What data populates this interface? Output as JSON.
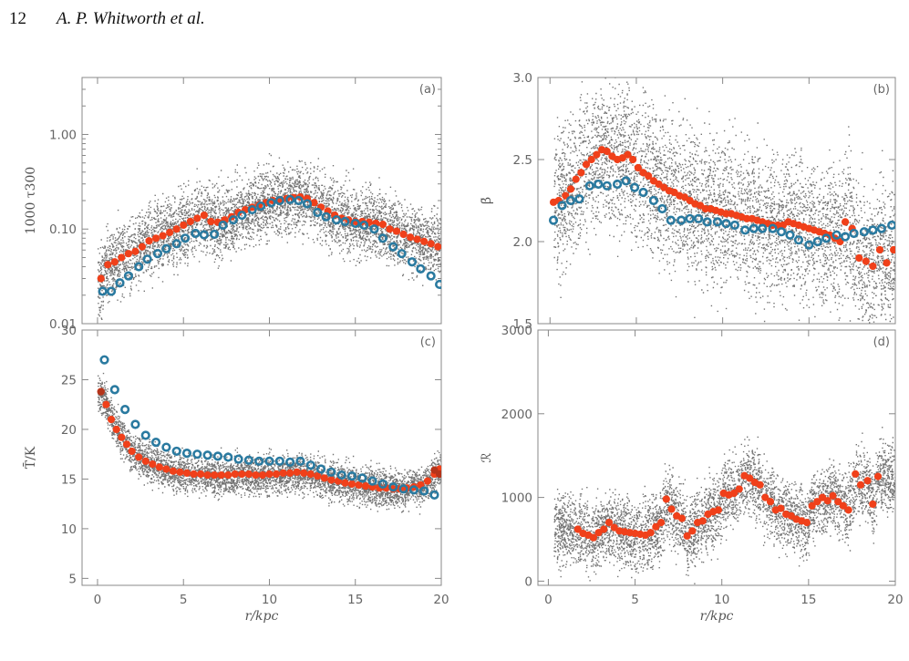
{
  "header": {
    "page_number": "12",
    "authors": "A. P. Whitworth et al."
  },
  "colors": {
    "red_series": "#f0401a",
    "darkred_series": "#b5341a",
    "blue_series": "#2a7aa0",
    "scatter": "#000000",
    "axes": "#888888"
  },
  "chart_data": [
    {
      "panel": "(a)",
      "type": "scatter",
      "xlabel": "",
      "ylabel": "1000 τ300",
      "xlim": [
        -0.9,
        20
      ],
      "ylim": [
        0.01,
        4.0
      ],
      "yscale": "log",
      "xticks": [
        0,
        5,
        10,
        15,
        20
      ],
      "xticklabels": [
        "",
        "",
        "",
        "",
        ""
      ],
      "yticks": [
        0.01,
        0.1,
        1.0
      ],
      "yticklabels": [
        "0.01",
        "0.10",
        "1.00"
      ],
      "series": [
        {
          "marker": "filled",
          "color": "red",
          "x": [
            0.2,
            0.6,
            1.0,
            1.4,
            1.8,
            2.2,
            2.6,
            3.0,
            3.4,
            3.8,
            4.2,
            4.6,
            5.0,
            5.4,
            5.8,
            6.2,
            6.6,
            7.0,
            7.4,
            7.8,
            8.2,
            8.6,
            9.0,
            9.4,
            9.8,
            10.2,
            10.6,
            11.0,
            11.4,
            11.8,
            12.2,
            12.6,
            13.0,
            13.4,
            13.8,
            14.2,
            14.6,
            15.0,
            15.4,
            15.8,
            16.2,
            16.6,
            17.0,
            17.4,
            17.8,
            18.2,
            18.6,
            19.0,
            19.4,
            19.8
          ],
          "y": [
            0.03,
            0.042,
            0.045,
            0.05,
            0.055,
            0.058,
            0.065,
            0.075,
            0.08,
            0.085,
            0.092,
            0.1,
            0.11,
            0.12,
            0.13,
            0.14,
            0.12,
            0.118,
            0.125,
            0.135,
            0.15,
            0.16,
            0.17,
            0.18,
            0.19,
            0.2,
            0.205,
            0.21,
            0.215,
            0.218,
            0.21,
            0.19,
            0.17,
            0.155,
            0.14,
            0.13,
            0.125,
            0.12,
            0.12,
            0.118,
            0.115,
            0.112,
            0.1,
            0.095,
            0.088,
            0.082,
            0.078,
            0.074,
            0.07,
            0.065
          ]
        },
        {
          "marker": "open",
          "color": "blue",
          "x": [
            0.3,
            0.8,
            1.3,
            1.8,
            2.4,
            2.9,
            3.5,
            4.0,
            4.6,
            5.1,
            5.7,
            6.2,
            6.8,
            7.3,
            7.9,
            8.4,
            9.0,
            9.5,
            10.1,
            10.6,
            11.2,
            11.7,
            12.2,
            12.8,
            13.3,
            13.9,
            14.4,
            15.0,
            15.5,
            16.1,
            16.6,
            17.2,
            17.7,
            18.3,
            18.8,
            19.4,
            19.9
          ],
          "y": [
            0.022,
            0.022,
            0.027,
            0.032,
            0.04,
            0.048,
            0.055,
            0.062,
            0.07,
            0.08,
            0.09,
            0.087,
            0.088,
            0.11,
            0.125,
            0.14,
            0.16,
            0.175,
            0.19,
            0.2,
            0.205,
            0.2,
            0.185,
            0.15,
            0.135,
            0.125,
            0.12,
            0.115,
            0.11,
            0.1,
            0.08,
            0.065,
            0.055,
            0.045,
            0.038,
            0.032,
            0.026
          ]
        }
      ]
    },
    {
      "panel": "(b)",
      "type": "scatter",
      "xlabel": "",
      "ylabel": "β̄",
      "xlim": [
        -0.7,
        20
      ],
      "ylim": [
        1.5,
        3.0
      ],
      "xticks": [
        0,
        5,
        10,
        15,
        20
      ],
      "xticklabels": [
        "",
        "",
        "",
        "",
        ""
      ],
      "yticks": [
        1.5,
        2.0,
        2.5,
        3.0
      ],
      "yticklabels": [
        "1.5",
        "2.0",
        "2.5",
        "3.0"
      ],
      "series": [
        {
          "marker": "filled",
          "color": "red",
          "x": [
            0.2,
            0.5,
            0.9,
            1.2,
            1.5,
            1.8,
            2.1,
            2.4,
            2.7,
            3.0,
            3.3,
            3.6,
            3.9,
            4.2,
            4.5,
            4.8,
            5.1,
            5.4,
            5.7,
            6.0,
            6.3,
            6.6,
            6.9,
            7.2,
            7.5,
            7.8,
            8.1,
            8.4,
            8.7,
            9.0,
            9.3,
            9.6,
            9.9,
            10.2,
            10.5,
            10.8,
            11.1,
            11.4,
            11.7,
            12.0,
            12.3,
            12.6,
            12.9,
            13.2,
            13.5,
            13.8,
            14.1,
            14.4,
            14.7,
            15.0,
            15.3,
            15.6,
            15.9,
            16.2,
            16.5,
            16.8,
            17.1,
            17.5,
            17.9,
            18.3,
            18.7,
            19.1,
            19.5,
            19.9
          ],
          "y": [
            2.24,
            2.25,
            2.28,
            2.32,
            2.38,
            2.42,
            2.47,
            2.5,
            2.53,
            2.56,
            2.55,
            2.52,
            2.5,
            2.51,
            2.53,
            2.5,
            2.45,
            2.42,
            2.4,
            2.37,
            2.35,
            2.33,
            2.31,
            2.3,
            2.28,
            2.27,
            2.25,
            2.23,
            2.22,
            2.2,
            2.2,
            2.19,
            2.18,
            2.17,
            2.17,
            2.16,
            2.15,
            2.14,
            2.14,
            2.13,
            2.12,
            2.11,
            2.1,
            2.1,
            2.1,
            2.12,
            2.11,
            2.1,
            2.09,
            2.08,
            2.07,
            2.06,
            2.05,
            2.04,
            2.02,
            2.0,
            2.12,
            2.08,
            1.9,
            1.88,
            1.85,
            1.95,
            1.87,
            1.95
          ]
        },
        {
          "marker": "open",
          "color": "blue",
          "x": [
            0.2,
            0.7,
            1.2,
            1.7,
            2.3,
            2.8,
            3.3,
            3.9,
            4.4,
            4.9,
            5.4,
            6.0,
            6.5,
            7.0,
            7.6,
            8.1,
            8.6,
            9.1,
            9.7,
            10.2,
            10.7,
            11.3,
            11.8,
            12.3,
            12.9,
            13.4,
            13.9,
            14.4,
            15.0,
            15.5,
            16.0,
            16.6,
            17.1,
            17.6,
            18.2,
            18.7,
            19.2,
            19.8
          ],
          "y": [
            2.13,
            2.22,
            2.25,
            2.26,
            2.34,
            2.35,
            2.34,
            2.35,
            2.37,
            2.33,
            2.3,
            2.25,
            2.2,
            2.13,
            2.13,
            2.14,
            2.14,
            2.12,
            2.12,
            2.11,
            2.1,
            2.07,
            2.08,
            2.08,
            2.08,
            2.06,
            2.04,
            2.01,
            1.98,
            2.0,
            2.02,
            2.04,
            2.03,
            2.05,
            2.06,
            2.07,
            2.08,
            2.1
          ]
        }
      ]
    },
    {
      "panel": "(c)",
      "type": "scatter",
      "xlabel": "r/kpc",
      "ylabel": "T̄/K",
      "xlim": [
        -0.9,
        20
      ],
      "ylim": [
        4.3,
        30
      ],
      "xticks": [
        0,
        5,
        10,
        15,
        20
      ],
      "xticklabels": [
        "0",
        "5",
        "10",
        "15",
        "20"
      ],
      "yticks": [
        5,
        10,
        15,
        20,
        25,
        30
      ],
      "yticklabels": [
        "5",
        "10",
        "15",
        "20",
        "25",
        "30"
      ],
      "series": [
        {
          "marker": "filled",
          "color": "red",
          "x": [
            0.2,
            0.5,
            0.8,
            1.1,
            1.4,
            1.7,
            2.0,
            2.4,
            2.8,
            3.2,
            3.6,
            4.0,
            4.4,
            4.8,
            5.2,
            5.6,
            6.0,
            6.4,
            6.8,
            7.2,
            7.6,
            8.0,
            8.4,
            8.8,
            9.2,
            9.6,
            10.0,
            10.4,
            10.8,
            11.2,
            11.6,
            12.0,
            12.4,
            12.8,
            13.2,
            13.6,
            14.0,
            14.4,
            14.8,
            15.2,
            15.6,
            16.0,
            16.4,
            16.8,
            17.2,
            17.6,
            18.0,
            18.4,
            18.8,
            19.2,
            19.6,
            19.9
          ],
          "y": [
            23.8,
            22.5,
            21.0,
            20.0,
            19.2,
            18.5,
            17.8,
            17.2,
            16.8,
            16.5,
            16.2,
            16.0,
            15.8,
            15.7,
            15.6,
            15.5,
            15.5,
            15.4,
            15.4,
            15.4,
            15.4,
            15.5,
            15.5,
            15.5,
            15.4,
            15.4,
            15.5,
            15.5,
            15.6,
            15.6,
            15.7,
            15.6,
            15.5,
            15.3,
            15.1,
            14.9,
            14.8,
            14.6,
            14.5,
            14.4,
            14.3,
            14.2,
            14.1,
            14.1,
            14.0,
            14.0,
            14.1,
            14.2,
            14.4,
            14.8,
            15.5,
            16.0
          ]
        },
        {
          "marker": "filled",
          "color": "darkred",
          "x": [
            0.2,
            19.6,
            19.9
          ],
          "y": [
            23.8,
            15.9,
            15.5
          ]
        },
        {
          "marker": "open",
          "color": "blue",
          "x": [
            0.4,
            1.0,
            1.6,
            2.2,
            2.8,
            3.4,
            4.0,
            4.6,
            5.2,
            5.8,
            6.4,
            7.0,
            7.6,
            8.2,
            8.8,
            9.4,
            10.0,
            10.6,
            11.2,
            11.8,
            12.4,
            13.0,
            13.6,
            14.2,
            14.8,
            15.4,
            16.0,
            16.6,
            17.2,
            17.8,
            18.4,
            19.0,
            19.6
          ],
          "y": [
            27.0,
            24.0,
            22.0,
            20.5,
            19.4,
            18.7,
            18.2,
            17.8,
            17.6,
            17.5,
            17.4,
            17.3,
            17.2,
            17.0,
            16.9,
            16.8,
            16.8,
            16.8,
            16.7,
            16.8,
            16.4,
            16.0,
            15.7,
            15.4,
            15.3,
            15.1,
            14.8,
            14.5,
            14.2,
            14.0,
            13.9,
            13.8,
            13.4
          ]
        }
      ]
    },
    {
      "panel": "(d)",
      "type": "scatter",
      "xlabel": "r/kpc",
      "ylabel": "ℛ",
      "xlim": [
        -0.6,
        20
      ],
      "ylim": [
        -50,
        3000
      ],
      "xticks": [
        0,
        5,
        10,
        15,
        20
      ],
      "xticklabels": [
        "0",
        "5",
        "10",
        "15",
        "20"
      ],
      "yticks": [
        0,
        1000,
        2000,
        3000
      ],
      "yticklabels": [
        "0",
        "1000",
        "2000",
        "3000"
      ],
      "series": [
        {
          "marker": "filled",
          "color": "red",
          "x": [
            1.7,
            2.0,
            2.3,
            2.6,
            2.9,
            3.2,
            3.5,
            3.8,
            4.1,
            4.4,
            4.7,
            5.0,
            5.3,
            5.6,
            5.9,
            6.2,
            6.5,
            6.8,
            7.1,
            7.4,
            7.7,
            8.0,
            8.3,
            8.6,
            8.9,
            9.2,
            9.5,
            9.8,
            10.1,
            10.4,
            10.7,
            11.0,
            11.3,
            11.6,
            11.9,
            12.2,
            12.5,
            12.8,
            13.1,
            13.4,
            13.7,
            14.0,
            14.3,
            14.6,
            14.9,
            15.2,
            15.5,
            15.8,
            16.1,
            16.4,
            16.7,
            17.0,
            17.3,
            17.7,
            18.0,
            18.4,
            18.7,
            19.0
          ],
          "y": [
            620,
            570,
            550,
            520,
            580,
            620,
            700,
            640,
            600,
            590,
            580,
            570,
            560,
            550,
            580,
            650,
            700,
            980,
            860,
            780,
            750,
            540,
            600,
            700,
            720,
            800,
            830,
            850,
            1050,
            1030,
            1050,
            1100,
            1260,
            1230,
            1180,
            1150,
            1000,
            950,
            850,
            870,
            800,
            780,
            740,
            720,
            700,
            900,
            950,
            1000,
            960,
            1020,
            950,
            900,
            850,
            1280,
            1150,
            1200,
            920,
            1250
          ]
        }
      ]
    }
  ]
}
